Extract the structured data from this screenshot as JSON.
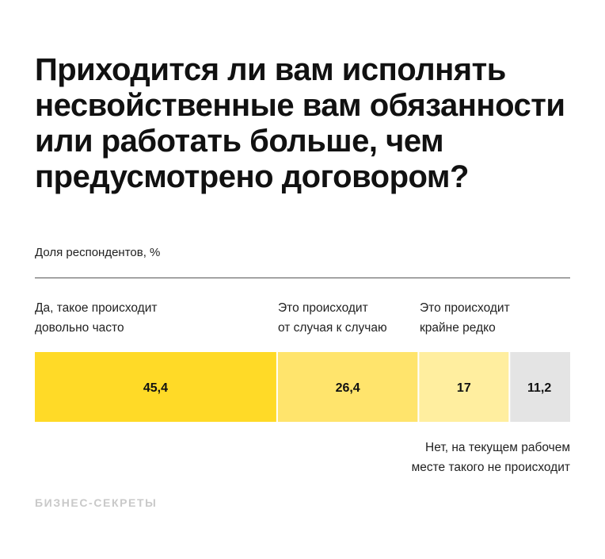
{
  "chart_data": {
    "type": "bar",
    "orientation": "horizontal-stacked",
    "title": "Приходится ли вам исполнять несвойственные вам обязанности или работать больше, чем предусмотрено договором?",
    "subtitle": "Доля респондентов, %",
    "categories": [
      "Да, такое происходит\nдовольно часто",
      "Это происходит\nот случая к случаю",
      "Это происходит\nкрайне редко",
      "Нет, на текущем рабочем\nместе такого не происходит"
    ],
    "values": [
      45.4,
      26.4,
      17,
      11.2
    ],
    "value_labels": [
      "45,4",
      "26,4",
      "17",
      "11,2"
    ],
    "colors": [
      "#FFDA27",
      "#FFE46C",
      "#FFEE9F",
      "#E4E4E4"
    ]
  },
  "source_logo": "БИЗНЕС-СЕКРЕТЫ"
}
